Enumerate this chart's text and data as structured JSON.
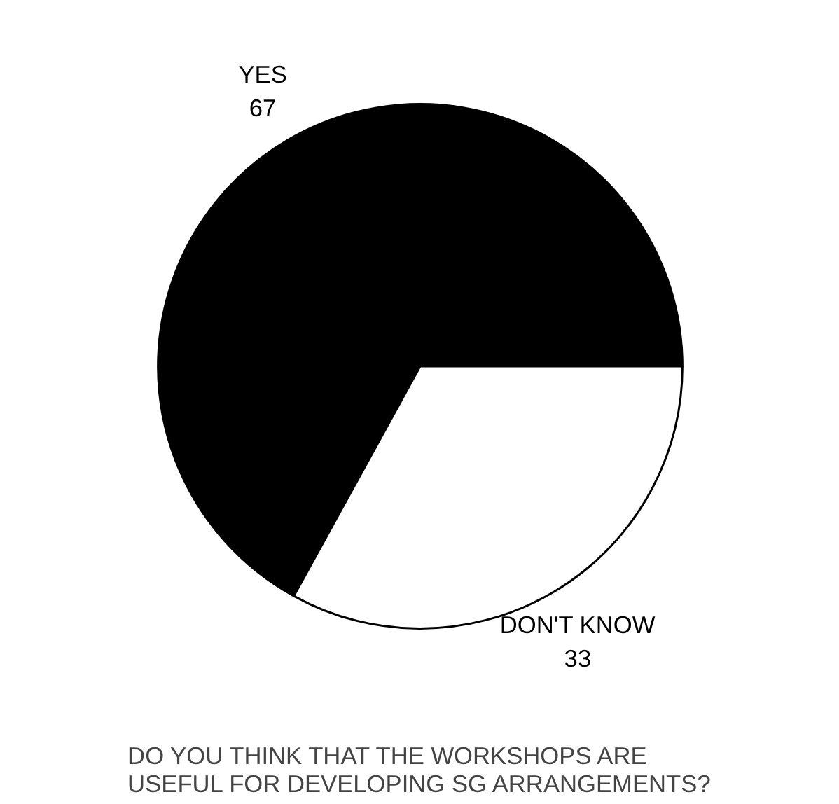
{
  "chart_data": {
    "type": "pie",
    "title": "DO YOU THINK THAT THE WORKSHOPS ARE\nUSEFUL FOR DEVELOPING SG ARRANGEMENTS?",
    "categories": [
      "YES",
      "DON'T KNOW"
    ],
    "values": [
      67,
      33
    ],
    "colors": [
      "#000000",
      "#ffffff"
    ],
    "data_labels": true
  }
}
